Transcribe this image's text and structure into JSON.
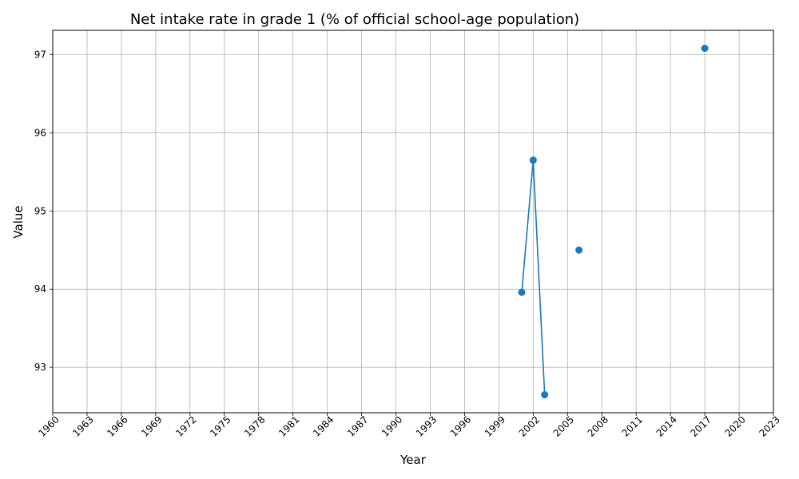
{
  "chart_data": {
    "type": "line",
    "title": "Net intake rate in grade 1 (% of official school-age population)",
    "xlabel": "Year",
    "ylabel": "Value",
    "xlim": [
      1960,
      2023
    ],
    "ylim": [
      92.42,
      97.31
    ],
    "x_ticks": [
      1960,
      1963,
      1966,
      1969,
      1972,
      1975,
      1978,
      1981,
      1984,
      1987,
      1990,
      1993,
      1996,
      1999,
      2002,
      2005,
      2008,
      2011,
      2014,
      2017,
      2020,
      2023
    ],
    "y_ticks": [
      93,
      94,
      95,
      96,
      97
    ],
    "grid": true,
    "legend": "none",
    "series": [
      {
        "color": "#1f77b4",
        "points": [
          {
            "x": 2001,
            "y": 93.96
          },
          {
            "x": 2002,
            "y": 95.65
          },
          {
            "x": 2003,
            "y": 92.65
          },
          {
            "x": 2005,
            "y": null
          },
          {
            "x": 2006,
            "y": 94.5
          },
          {
            "x": 2016,
            "y": null
          },
          {
            "x": 2017,
            "y": 97.08
          }
        ]
      }
    ]
  }
}
